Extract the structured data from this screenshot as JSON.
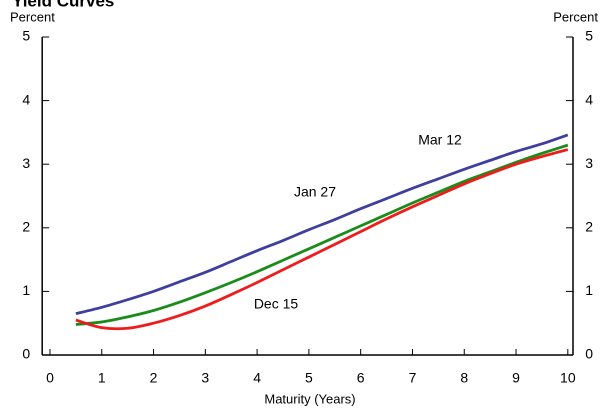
{
  "chart_data": {
    "type": "line",
    "title": "Yield Curves",
    "y_label": "Percent",
    "y2_label": "Percent",
    "x_label": "Maturity (Years)",
    "x": [
      0.5,
      1,
      1.5,
      2,
      2.5,
      3,
      3.5,
      4,
      4.5,
      5,
      5.5,
      6,
      6.5,
      7,
      7.5,
      8,
      8.5,
      9,
      9.5,
      10
    ],
    "series": [
      {
        "name": "Mar 12",
        "color": "#3f3fa0",
        "values": [
          0.65,
          0.75,
          0.87,
          1.0,
          1.15,
          1.3,
          1.47,
          1.64,
          1.8,
          1.97,
          2.13,
          2.3,
          2.46,
          2.62,
          2.77,
          2.92,
          3.06,
          3.2,
          3.32,
          3.46
        ]
      },
      {
        "name": "Jan 27",
        "color": "#1a8c1a",
        "values": [
          0.48,
          0.52,
          0.6,
          0.7,
          0.83,
          0.98,
          1.14,
          1.31,
          1.49,
          1.67,
          1.85,
          2.03,
          2.21,
          2.39,
          2.56,
          2.73,
          2.88,
          3.03,
          3.17,
          3.3
        ]
      },
      {
        "name": "Dec 15",
        "color": "#ee1c1c",
        "values": [
          0.55,
          0.43,
          0.42,
          0.5,
          0.62,
          0.77,
          0.95,
          1.14,
          1.34,
          1.54,
          1.74,
          1.94,
          2.14,
          2.33,
          2.51,
          2.69,
          2.85,
          3.0,
          3.12,
          3.23
        ]
      }
    ],
    "xlim": [
      -0.15,
      10.1
    ],
    "xticks": [
      0,
      1,
      2,
      3,
      4,
      5,
      6,
      7,
      8,
      9,
      10
    ],
    "ylim": [
      0,
      5
    ],
    "yticks": [
      0,
      1,
      2,
      3,
      4,
      5
    ],
    "y2lim": [
      0,
      5
    ],
    "y2ticks": [
      0,
      1,
      2,
      3,
      4,
      5
    ],
    "grid": false
  }
}
